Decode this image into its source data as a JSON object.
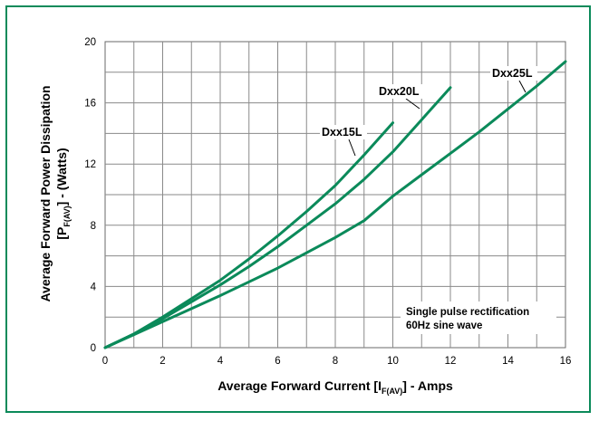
{
  "chart_data": {
    "type": "line",
    "xlabel_main": "Average Forward Current [I",
    "xlabel_sub": "F(AV)",
    "xlabel_tail": "] - Amps",
    "ylabel_line1": "Average Forward Power Dissipation",
    "ylabel_line2_main": "[P",
    "ylabel_line2_sub": "F(AV)",
    "ylabel_line2_tail": "] - (Watts)",
    "xlim": [
      0,
      16
    ],
    "ylim": [
      0,
      20
    ],
    "x_ticks": [
      "0",
      "2",
      "4",
      "6",
      "8",
      "10",
      "12",
      "14",
      "16"
    ],
    "y_ticks": [
      "0",
      "4",
      "8",
      "12",
      "16",
      "20"
    ],
    "grid": true,
    "annotation_line1": "Single pulse rectification",
    "annotation_line2": "60Hz sine wave",
    "series": [
      {
        "name": "Dxx15L",
        "color": "#0b8a5a",
        "x": [
          0,
          1,
          2,
          3,
          4,
          5,
          6,
          7,
          8,
          9,
          10
        ],
        "y": [
          0,
          0.9,
          2.0,
          3.2,
          4.4,
          5.8,
          7.3,
          8.9,
          10.6,
          12.6,
          14.7
        ]
      },
      {
        "name": "Dxx20L",
        "color": "#0b8a5a",
        "x": [
          0,
          1,
          2,
          3,
          4,
          5,
          6,
          7,
          8,
          9,
          10,
          11,
          12
        ],
        "y": [
          0,
          0.9,
          1.9,
          3.0,
          4.1,
          5.3,
          6.6,
          8.0,
          9.4,
          11.0,
          12.8,
          14.9,
          17.0
        ]
      },
      {
        "name": "Dxx25L",
        "color": "#0b8a5a",
        "x": [
          0,
          1,
          2,
          3,
          4,
          5,
          6,
          7,
          8,
          9,
          10,
          11,
          12,
          13,
          14,
          15,
          16
        ],
        "y": [
          0,
          0.85,
          1.7,
          2.55,
          3.4,
          4.3,
          5.2,
          6.2,
          7.2,
          8.3,
          9.9,
          11.3,
          12.7,
          14.1,
          15.6,
          17.1,
          18.7
        ]
      }
    ]
  }
}
